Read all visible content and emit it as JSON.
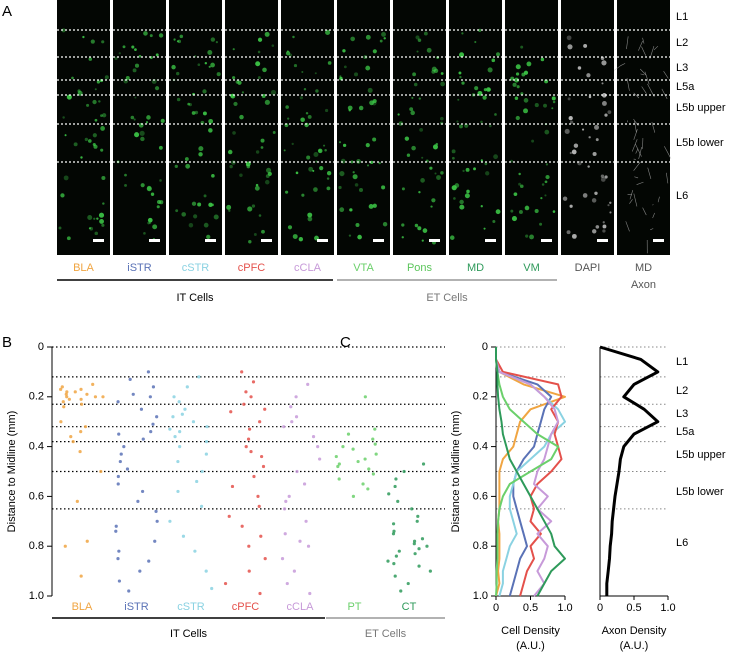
{
  "panel_a": {
    "label": "A",
    "columns": [
      {
        "label": [
          "BLA"
        ],
        "color": "#f0a542"
      },
      {
        "label": [
          "iSTR"
        ],
        "color": "#5a72b6"
      },
      {
        "label": [
          "cSTR"
        ],
        "color": "#8ad2e2"
      },
      {
        "label": [
          "cPFC"
        ],
        "color": "#e4514b"
      },
      {
        "label": [
          "cCLA"
        ],
        "color": "#c79ad9"
      },
      {
        "label": [
          "VTA"
        ],
        "color": "#6bd06b"
      },
      {
        "label": [
          "Pons"
        ],
        "color": "#5cc65c"
      },
      {
        "label": [
          "MD"
        ],
        "color": "#2e9a5a"
      },
      {
        "label": [
          "VM"
        ],
        "color": "#2e9a5a"
      },
      {
        "label": [
          "DAPI"
        ],
        "color": "#555555"
      },
      {
        "label": [
          "MD",
          "Axon"
        ],
        "color": "#555555"
      }
    ],
    "layers": [
      "L1",
      "L2",
      "L3",
      "L5a",
      "L5b upper",
      "L5b lower",
      "L6"
    ],
    "groups": [
      {
        "label": "IT Cells",
        "color": "#000000"
      },
      {
        "label": "ET Cells",
        "color": "#999999"
      }
    ]
  },
  "chart_data": [
    {
      "type": "strip",
      "label": "B",
      "ylabel": "Distance to Midline (mm)",
      "categories": [
        "BLA",
        "iSTR",
        "cSTR",
        "cPFC",
        "cCLA",
        "PT",
        "CT"
      ],
      "colors": [
        "#f0a542",
        "#5a72b6",
        "#8ad2e2",
        "#e4514b",
        "#c79ad9",
        "#6bd06b",
        "#2e9a5a"
      ],
      "values": [
        [
          0.15,
          0.16,
          0.17,
          0.18,
          0.18,
          0.19,
          0.19,
          0.2,
          0.2,
          0.21,
          0.21,
          0.22,
          0.23,
          0.24,
          0.17,
          0.2,
          0.3,
          0.32,
          0.34,
          0.36,
          0.38,
          0.42,
          0.5,
          0.62,
          0.78,
          0.8,
          0.92
        ],
        [
          0.1,
          0.13,
          0.16,
          0.19,
          0.22,
          0.25,
          0.28,
          0.31,
          0.34,
          0.37,
          0.4,
          0.43,
          0.46,
          0.49,
          0.52,
          0.55,
          0.58,
          0.62,
          0.66,
          0.7,
          0.74,
          0.78,
          0.82,
          0.86,
          0.9,
          0.94,
          0.98,
          0.2,
          0.35,
          0.72,
          0.85
        ],
        [
          0.12,
          0.16,
          0.2,
          0.22,
          0.25,
          0.27,
          0.3,
          0.32,
          0.34,
          0.36,
          0.38,
          0.4,
          0.43,
          0.46,
          0.5,
          0.54,
          0.58,
          0.64,
          0.7,
          0.76,
          0.82,
          0.9,
          0.97,
          0.28,
          0.33
        ],
        [
          0.1,
          0.14,
          0.18,
          0.2,
          0.23,
          0.26,
          0.3,
          0.33,
          0.37,
          0.4,
          0.44,
          0.48,
          0.52,
          0.56,
          0.6,
          0.64,
          0.68,
          0.72,
          0.76,
          0.8,
          0.85,
          0.9,
          0.95,
          0.99,
          0.25,
          0.42
        ],
        [
          0.15,
          0.2,
          0.24,
          0.28,
          0.32,
          0.36,
          0.4,
          0.45,
          0.5,
          0.55,
          0.6,
          0.65,
          0.7,
          0.75,
          0.8,
          0.85,
          0.9,
          0.95,
          0.99,
          0.3,
          0.62,
          0.78
        ],
        [
          0.2,
          0.33,
          0.35,
          0.37,
          0.39,
          0.41,
          0.43,
          0.45,
          0.47,
          0.49,
          0.51,
          0.53,
          0.55,
          0.57,
          0.6,
          0.44,
          0.46,
          0.4,
          0.48
        ],
        [
          0.47,
          0.5,
          0.53,
          0.56,
          0.59,
          0.62,
          0.65,
          0.68,
          0.71,
          0.74,
          0.77,
          0.8,
          0.82,
          0.84,
          0.86,
          0.88,
          0.9,
          0.92,
          0.95,
          0.98,
          0.7,
          0.75,
          0.79,
          0.83,
          0.87,
          0.78,
          0.81
        ]
      ],
      "ylim": [
        0,
        1
      ],
      "yticks": [
        0,
        0.2,
        0.4,
        0.6,
        0.8,
        {
          "value": 1,
          "label": "1.0"
        }
      ],
      "inverted": true,
      "layer_lines": [
        0,
        0.12,
        0.23,
        0.32,
        0.38,
        0.5,
        0.65
      ],
      "groups": [
        {
          "label": "IT Cells",
          "color": "#000000"
        },
        {
          "label": "ET Cells",
          "color": "#999999"
        }
      ]
    },
    {
      "type": "profile",
      "label": "C",
      "ylabel": "Distance to Midline (mm)",
      "xlabel": [
        "Cell Density",
        "(A.U.)"
      ],
      "y": [
        0,
        0.05,
        0.1,
        0.15,
        0.2,
        0.25,
        0.3,
        0.35,
        0.4,
        0.45,
        0.5,
        0.55,
        0.6,
        0.65,
        0.7,
        0.75,
        0.8,
        0.85,
        0.9,
        0.95,
        1
      ],
      "series": [
        {
          "name": "BLA",
          "color": "#f0a542",
          "values": [
            0,
            0,
            0.05,
            0.4,
            1,
            0.5,
            0.35,
            0.3,
            0.25,
            0.1,
            0.05,
            0.05,
            0.05,
            0.05,
            0.03,
            0.05,
            0.05,
            0.05,
            0.03,
            0.05,
            0
          ]
        },
        {
          "name": "iSTR",
          "color": "#5a72b6",
          "values": [
            0,
            0,
            0.05,
            0.6,
            0.8,
            0.7,
            0.65,
            0.6,
            0.55,
            0.4,
            0.3,
            0.25,
            0.25,
            0.3,
            0.35,
            0.4,
            0.45,
            0.35,
            0.3,
            0.25,
            0.2
          ]
        },
        {
          "name": "cSTR",
          "color": "#8ad2e2",
          "values": [
            0,
            0,
            0.05,
            0.5,
            0.7,
            0.9,
            1,
            0.8,
            0.7,
            0.5,
            0.3,
            0.25,
            0.2,
            0.2,
            0.25,
            0.3,
            0.2,
            0.15,
            0.1,
            0.1,
            0.05
          ]
        },
        {
          "name": "cPFC",
          "color": "#e4514b",
          "values": [
            0,
            0,
            0.1,
            0.9,
            0.95,
            0.8,
            0.9,
            0.85,
            0.9,
            0.95,
            0.8,
            0.6,
            0.5,
            0.55,
            0.5,
            0.65,
            0.5,
            0.55,
            0.45,
            0.4,
            0.35
          ]
        },
        {
          "name": "cCLA",
          "color": "#c79ad9",
          "values": [
            0,
            0,
            0.05,
            0.5,
            0.7,
            0.85,
            0.9,
            0.8,
            0.75,
            0.7,
            0.6,
            0.55,
            0.75,
            0.6,
            0.8,
            0.6,
            0.75,
            0.7,
            0.6,
            0.7,
            0.55
          ]
        },
        {
          "name": "PT",
          "color": "#6bd06b",
          "values": [
            0,
            0,
            0.02,
            0.05,
            0.1,
            0.2,
            0.4,
            0.6,
            0.9,
            0.8,
            0.5,
            0.2,
            0.1,
            0.05,
            0.03,
            0.02,
            0.02,
            0.02,
            0.01,
            0.01,
            0
          ]
        },
        {
          "name": "CT",
          "color": "#2e9a5a",
          "values": [
            0,
            0,
            0.02,
            0.02,
            0.03,
            0.05,
            0.08,
            0.1,
            0.15,
            0.2,
            0.3,
            0.4,
            0.5,
            0.6,
            0.7,
            0.8,
            0.85,
            1,
            0.8,
            0.7,
            0.6
          ]
        }
      ],
      "xlim": [
        0,
        1
      ],
      "xticks": [
        0,
        0.5,
        {
          "value": 1,
          "label": "1.0"
        }
      ],
      "ylim": [
        0,
        1
      ],
      "yticks": [
        0,
        0.2,
        0.4,
        0.6,
        0.8,
        {
          "value": 1,
          "label": "1.0"
        }
      ],
      "inverted": true,
      "layer_lines": [
        0,
        0.12,
        0.23,
        0.32,
        0.38,
        0.5,
        0.65
      ]
    },
    {
      "type": "profile",
      "xlabel": [
        "Axon Density",
        "(A.U.)"
      ],
      "y": [
        0,
        0.05,
        0.1,
        0.15,
        0.2,
        0.25,
        0.3,
        0.35,
        0.4,
        0.45,
        0.5,
        0.55,
        0.6,
        0.65,
        0.7,
        0.75,
        0.8,
        0.85,
        0.9,
        0.95,
        1
      ],
      "series": [
        {
          "name": "MD Axon",
          "color": "#000000",
          "values": [
            0,
            0.6,
            0.85,
            0.5,
            0.35,
            0.65,
            0.85,
            0.5,
            0.35,
            0.3,
            0.28,
            0.25,
            0.22,
            0.2,
            0.18,
            0.17,
            0.15,
            0.14,
            0.12,
            0.1,
            0.1
          ]
        }
      ],
      "xlim": [
        0,
        1
      ],
      "xticks": [
        0,
        0.5,
        {
          "value": 1,
          "label": "1.0"
        }
      ],
      "ylim": [
        0,
        1
      ],
      "inverted": true,
      "layer_lines": [
        0,
        0.12,
        0.23,
        0.32,
        0.38,
        0.5,
        0.65
      ],
      "layer_labels": [
        "L1",
        "L2",
        "L3",
        "L5a",
        "L5b upper",
        "L5b lower",
        "L6"
      ]
    }
  ]
}
